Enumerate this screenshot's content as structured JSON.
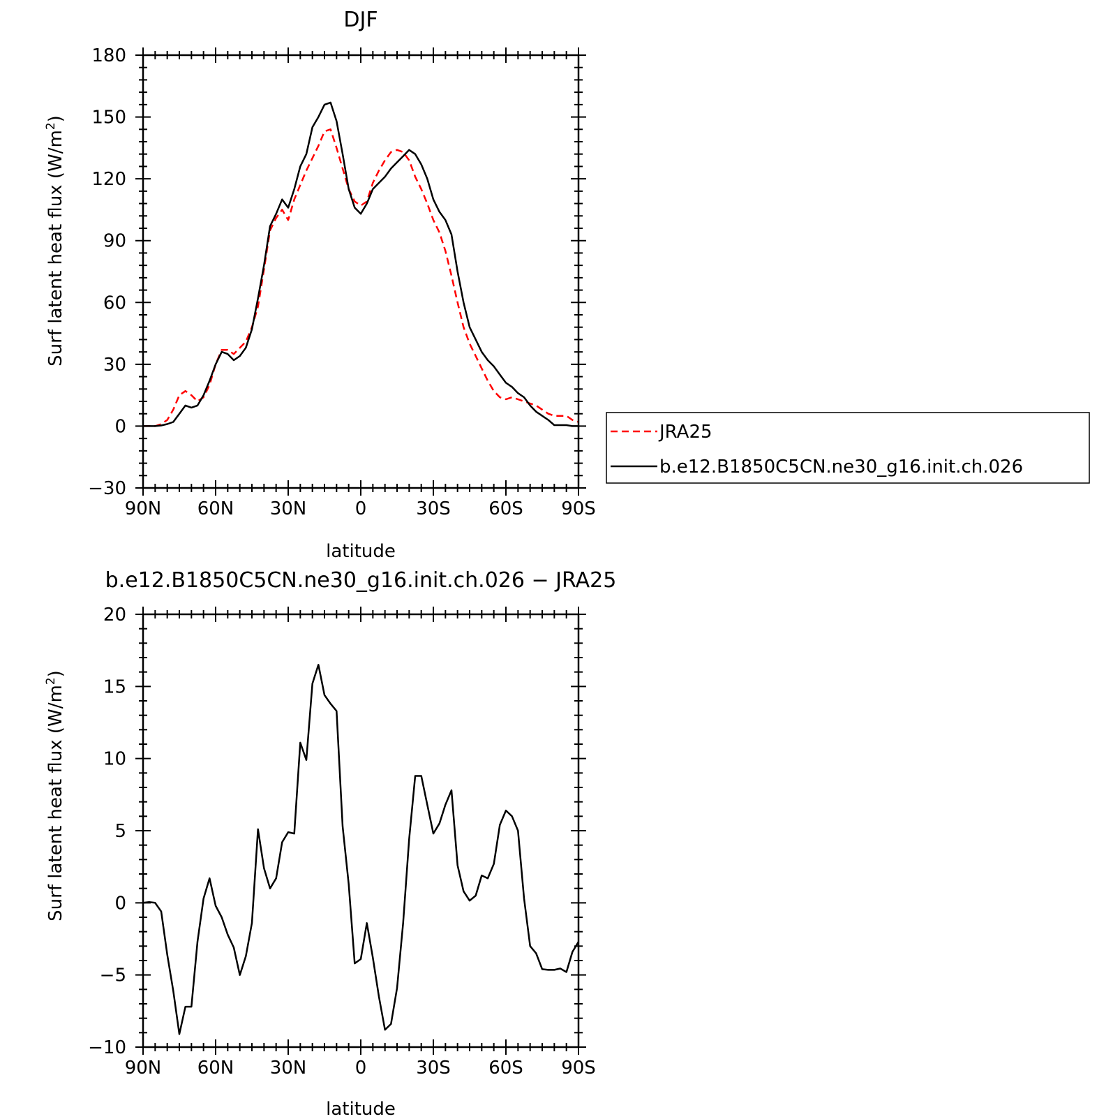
{
  "chart_data": [
    {
      "type": "line",
      "title": "DJF",
      "xlabel": "latitude",
      "ylabel": "Surf latent heat flux (W/m",
      "ylabel_sup": "2",
      "ylabel_tail": ")",
      "xlim": [
        90,
        -90
      ],
      "ylim": [
        -30,
        180
      ],
      "x_ticks": [
        {
          "value": 90,
          "label": "90N"
        },
        {
          "value": 60,
          "label": "60N"
        },
        {
          "value": 30,
          "label": "30N"
        },
        {
          "value": 0,
          "label": "0"
        },
        {
          "value": -30,
          "label": "30S"
        },
        {
          "value": -60,
          "label": "60S"
        },
        {
          "value": -90,
          "label": "90S"
        }
      ],
      "y_ticks": [
        {
          "value": 180,
          "label": "180"
        },
        {
          "value": 150,
          "label": "150"
        },
        {
          "value": 120,
          "label": "120"
        },
        {
          "value": 90,
          "label": "90"
        },
        {
          "value": 60,
          "label": "60"
        },
        {
          "value": 30,
          "label": "30"
        },
        {
          "value": 0,
          "label": "0"
        },
        {
          "value": -30,
          "label": "−30"
        }
      ],
      "legend_position": "right",
      "series": [
        {
          "name": "JRA25",
          "color": "#ff0000",
          "dash": "dashed",
          "x": [
            90,
            87.5,
            85,
            82.5,
            80,
            77.5,
            75,
            72.5,
            70,
            67.5,
            65,
            62.5,
            60,
            57.5,
            55,
            52.5,
            50,
            47.5,
            45,
            42.5,
            40,
            37.5,
            35,
            32.5,
            30,
            27.5,
            25,
            22.5,
            20,
            17.5,
            15,
            12.5,
            10,
            7.5,
            5,
            2.5,
            0,
            -2.5,
            -5,
            -7.5,
            -10,
            -12.5,
            -15,
            -17.5,
            -20,
            -22.5,
            -25,
            -27.5,
            -30,
            -32.5,
            -35,
            -37.5,
            -40,
            -42.5,
            -45,
            -47.5,
            -50,
            -52.5,
            -55,
            -57.5,
            -60,
            -62.5,
            -65,
            -67.5,
            -70,
            -72.5,
            -75,
            -77.5,
            -80,
            -82.5,
            -85,
            -87.5,
            -90
          ],
          "values": [
            0,
            0,
            0,
            1,
            3,
            8,
            15,
            17,
            15,
            12,
            14,
            20,
            30,
            37,
            37,
            35,
            38,
            41,
            48,
            58,
            76,
            95,
            101,
            105,
            100,
            110,
            117,
            124,
            130,
            136,
            143,
            144,
            135,
            125,
            115,
            109,
            107,
            109,
            118,
            124,
            129,
            133,
            134,
            133,
            129,
            121,
            115,
            108,
            100,
            94,
            85,
            73,
            60,
            48,
            40,
            34,
            28,
            22,
            17,
            14,
            13,
            14,
            13,
            12,
            11,
            10,
            8,
            6,
            5,
            5,
            5,
            3,
            2
          ]
        },
        {
          "name": "b.e12.B1850C5CN.ne30_g16.init.ch.026",
          "color": "#000000",
          "dash": "solid",
          "x": [
            90,
            87.5,
            85,
            82.5,
            80,
            77.5,
            75,
            72.5,
            70,
            67.5,
            65,
            62.5,
            60,
            57.5,
            55,
            52.5,
            50,
            47.5,
            45,
            42.5,
            40,
            37.5,
            35,
            32.5,
            30,
            27.5,
            25,
            22.5,
            20,
            17.5,
            15,
            12.5,
            10,
            7.5,
            5,
            2.5,
            0,
            -2.5,
            -5,
            -7.5,
            -10,
            -12.5,
            -15,
            -17.5,
            -20,
            -22.5,
            -25,
            -27.5,
            -30,
            -32.5,
            -35,
            -37.5,
            -40,
            -42.5,
            -45,
            -47.5,
            -50,
            -52.5,
            -55,
            -57.5,
            -60,
            -62.5,
            -65,
            -67.5,
            -70,
            -72.5,
            -75,
            -77.5,
            -80,
            -82.5,
            -85,
            -87.5,
            -90
          ],
          "values": [
            0,
            0,
            0,
            0.3,
            1,
            2,
            6,
            10,
            9,
            10,
            15,
            22,
            30,
            36,
            35,
            32,
            34,
            38,
            47,
            62,
            78,
            97,
            103,
            110,
            106,
            115,
            126,
            132,
            145,
            150,
            156,
            157,
            148,
            132,
            115,
            106,
            103,
            108,
            115,
            118,
            121,
            125,
            128,
            131,
            134,
            132,
            127,
            120,
            110,
            104,
            100,
            93,
            75,
            60,
            48,
            42,
            36,
            32,
            29,
            25,
            21,
            19,
            16,
            14,
            10,
            7,
            5,
            3,
            0.5,
            0.5,
            0.5,
            0,
            0
          ]
        }
      ]
    },
    {
      "type": "line",
      "title": "b.e12.B1850C5CN.ne30_g16.init.ch.026 − JRA25",
      "xlabel": "latitude",
      "ylabel": "Surf latent heat flux (W/m",
      "ylabel_sup": "2",
      "ylabel_tail": ")",
      "xlim": [
        90,
        -90
      ],
      "ylim": [
        -10,
        20
      ],
      "x_ticks": [
        {
          "value": 90,
          "label": "90N"
        },
        {
          "value": 60,
          "label": "60N"
        },
        {
          "value": 30,
          "label": "30N"
        },
        {
          "value": 0,
          "label": "0"
        },
        {
          "value": -30,
          "label": "30S"
        },
        {
          "value": -60,
          "label": "60S"
        },
        {
          "value": -90,
          "label": "90S"
        }
      ],
      "y_ticks": [
        {
          "value": 20,
          "label": "20"
        },
        {
          "value": 15,
          "label": "15"
        },
        {
          "value": 10,
          "label": "10"
        },
        {
          "value": 5,
          "label": "5"
        },
        {
          "value": 0,
          "label": "0"
        },
        {
          "value": -5,
          "label": "−5"
        },
        {
          "value": -10,
          "label": "−10"
        }
      ],
      "series": [
        {
          "color": "#000000",
          "dash": "solid",
          "x": [
            90,
            87.5,
            85,
            82.5,
            80,
            77.5,
            75,
            72.5,
            70,
            67.5,
            65,
            62.5,
            60,
            57.5,
            55,
            52.5,
            50,
            47.5,
            45,
            42.5,
            40,
            37.5,
            35,
            32.5,
            30,
            27.5,
            25,
            22.5,
            20,
            17.5,
            15,
            12.5,
            10,
            7.5,
            5,
            2.5,
            0,
            -2.5,
            -5,
            -7.5,
            -10,
            -12.5,
            -15,
            -17.5,
            -20,
            -22.5,
            -25,
            -27.5,
            -30,
            -32.5,
            -35,
            -37.5,
            -40,
            -42.5,
            -45,
            -47.5,
            -50,
            -52.5,
            -55,
            -57.5,
            -60,
            -62.5,
            -65,
            -67.5,
            -70,
            -72.5,
            -75,
            -77.5,
            -80,
            -82.5,
            -85,
            -87.5,
            -90
          ],
          "values": [
            0,
            0.05,
            0,
            -0.6,
            -3.6,
            -6.1,
            -9.1,
            -7.2,
            -7.2,
            -2.7,
            0.3,
            1.7,
            -0.2,
            -1.0,
            -2.2,
            -3.1,
            -5.0,
            -3.7,
            -1.4,
            5.1,
            2.4,
            1.0,
            1.7,
            4.2,
            4.9,
            4.8,
            11.1,
            9.9,
            15.2,
            16.5,
            14.4,
            13.8,
            13.3,
            5.3,
            1.3,
            -4.2,
            -3.9,
            -1.4,
            -3.8,
            -6.5,
            -8.8,
            -8.4,
            -5.9,
            -1.4,
            4.4,
            8.8,
            8.8,
            6.8,
            4.8,
            5.5,
            6.8,
            7.8,
            2.6,
            0.8,
            0.15,
            0.5,
            1.9,
            1.7,
            2.7,
            5.4,
            6.4,
            6.0,
            5.0,
            0.3,
            -3.0,
            -3.5,
            -4.6,
            -4.65,
            -4.65,
            -4.55,
            -4.8,
            -3.4,
            -2.7
          ]
        }
      ]
    }
  ]
}
